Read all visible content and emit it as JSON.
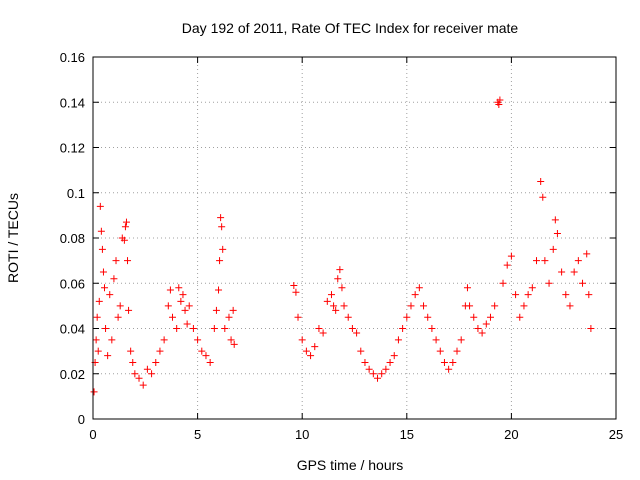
{
  "chart_data": {
    "type": "scatter",
    "title": "Day 192 of 2011, Rate Of TEC Index for receiver mate",
    "xlabel": "GPS time / hours",
    "ylabel": "ROTI / TECUs",
    "xlim": [
      0,
      25
    ],
    "ylim": [
      0,
      0.16
    ],
    "xticks": [
      0,
      5,
      10,
      15,
      20,
      25
    ],
    "yticks": [
      0,
      0.02,
      0.04,
      0.06,
      0.08,
      0.1,
      0.12,
      0.14,
      0.16
    ],
    "ytick_labels": [
      "0",
      "0.02",
      "0.04",
      "0.06",
      "0.08",
      "0.1",
      "0.12",
      "0.14",
      "0.16"
    ],
    "grid": true,
    "marker": "+",
    "marker_color": "#ff0000",
    "series": [
      {
        "points": [
          [
            0.05,
            0.012
          ],
          [
            0.1,
            0.025
          ],
          [
            0.15,
            0.035
          ],
          [
            0.2,
            0.045
          ],
          [
            0.25,
            0.03
          ],
          [
            0.3,
            0.052
          ],
          [
            0.35,
            0.094
          ],
          [
            0.4,
            0.083
          ],
          [
            0.45,
            0.075
          ],
          [
            0.5,
            0.065
          ],
          [
            0.55,
            0.058
          ],
          [
            0.6,
            0.04
          ],
          [
            0.7,
            0.028
          ],
          [
            0.8,
            0.055
          ],
          [
            0.9,
            0.035
          ],
          [
            1.0,
            0.062
          ],
          [
            1.1,
            0.07
          ],
          [
            1.2,
            0.045
          ],
          [
            1.3,
            0.05
          ],
          [
            1.4,
            0.08
          ],
          [
            1.5,
            0.079
          ],
          [
            1.55,
            0.085
          ],
          [
            1.6,
            0.087
          ],
          [
            1.65,
            0.07
          ],
          [
            1.7,
            0.048
          ],
          [
            1.8,
            0.03
          ],
          [
            1.9,
            0.025
          ],
          [
            2.0,
            0.02
          ],
          [
            2.2,
            0.018
          ],
          [
            2.4,
            0.015
          ],
          [
            2.6,
            0.022
          ],
          [
            2.8,
            0.02
          ],
          [
            3.0,
            0.025
          ],
          [
            3.2,
            0.03
          ],
          [
            3.4,
            0.035
          ],
          [
            3.6,
            0.05
          ],
          [
            3.7,
            0.057
          ],
          [
            3.8,
            0.045
          ],
          [
            4.0,
            0.04
          ],
          [
            4.1,
            0.058
          ],
          [
            4.2,
            0.052
          ],
          [
            4.3,
            0.055
          ],
          [
            4.4,
            0.048
          ],
          [
            4.5,
            0.042
          ],
          [
            4.6,
            0.05
          ],
          [
            4.8,
            0.04
          ],
          [
            5.0,
            0.035
          ],
          [
            5.2,
            0.03
          ],
          [
            5.4,
            0.028
          ],
          [
            5.6,
            0.025
          ],
          [
            5.8,
            0.04
          ],
          [
            5.9,
            0.048
          ],
          [
            6.0,
            0.057
          ],
          [
            6.05,
            0.07
          ],
          [
            6.1,
            0.089
          ],
          [
            6.15,
            0.085
          ],
          [
            6.2,
            0.075
          ],
          [
            6.3,
            0.04
          ],
          [
            6.5,
            0.045
          ],
          [
            6.6,
            0.035
          ],
          [
            6.7,
            0.048
          ],
          [
            6.75,
            0.033
          ],
          [
            9.6,
            0.059
          ],
          [
            9.7,
            0.056
          ],
          [
            9.8,
            0.045
          ],
          [
            10.0,
            0.035
          ],
          [
            10.2,
            0.03
          ],
          [
            10.4,
            0.028
          ],
          [
            10.6,
            0.032
          ],
          [
            10.8,
            0.04
          ],
          [
            11.0,
            0.038
          ],
          [
            11.2,
            0.052
          ],
          [
            11.4,
            0.055
          ],
          [
            11.5,
            0.05
          ],
          [
            11.6,
            0.048
          ],
          [
            11.7,
            0.062
          ],
          [
            11.8,
            0.066
          ],
          [
            11.9,
            0.058
          ],
          [
            12.0,
            0.05
          ],
          [
            12.2,
            0.045
          ],
          [
            12.4,
            0.04
          ],
          [
            12.6,
            0.038
          ],
          [
            12.8,
            0.03
          ],
          [
            13.0,
            0.025
          ],
          [
            13.2,
            0.022
          ],
          [
            13.4,
            0.02
          ],
          [
            13.6,
            0.018
          ],
          [
            13.8,
            0.02
          ],
          [
            14.0,
            0.022
          ],
          [
            14.2,
            0.025
          ],
          [
            14.4,
            0.028
          ],
          [
            14.6,
            0.035
          ],
          [
            14.8,
            0.04
          ],
          [
            15.0,
            0.045
          ],
          [
            15.2,
            0.05
          ],
          [
            15.4,
            0.055
          ],
          [
            15.6,
            0.058
          ],
          [
            15.8,
            0.05
          ],
          [
            16.0,
            0.045
          ],
          [
            16.2,
            0.04
          ],
          [
            16.4,
            0.035
          ],
          [
            16.6,
            0.03
          ],
          [
            16.8,
            0.025
          ],
          [
            17.0,
            0.022
          ],
          [
            17.2,
            0.025
          ],
          [
            17.4,
            0.03
          ],
          [
            17.6,
            0.035
          ],
          [
            17.8,
            0.05
          ],
          [
            17.9,
            0.058
          ],
          [
            18.0,
            0.05
          ],
          [
            18.2,
            0.045
          ],
          [
            18.4,
            0.04
          ],
          [
            18.6,
            0.038
          ],
          [
            18.8,
            0.042
          ],
          [
            19.0,
            0.045
          ],
          [
            19.2,
            0.05
          ],
          [
            19.35,
            0.14
          ],
          [
            19.4,
            0.139
          ],
          [
            19.45,
            0.141
          ],
          [
            19.6,
            0.06
          ],
          [
            19.8,
            0.068
          ],
          [
            20.0,
            0.072
          ],
          [
            20.2,
            0.055
          ],
          [
            20.4,
            0.045
          ],
          [
            20.6,
            0.05
          ],
          [
            20.8,
            0.055
          ],
          [
            21.0,
            0.058
          ],
          [
            21.2,
            0.07
          ],
          [
            21.4,
            0.105
          ],
          [
            21.5,
            0.098
          ],
          [
            21.6,
            0.07
          ],
          [
            21.8,
            0.06
          ],
          [
            22.0,
            0.075
          ],
          [
            22.1,
            0.088
          ],
          [
            22.2,
            0.082
          ],
          [
            22.4,
            0.065
          ],
          [
            22.6,
            0.055
          ],
          [
            22.8,
            0.05
          ],
          [
            23.0,
            0.065
          ],
          [
            23.2,
            0.07
          ],
          [
            23.4,
            0.06
          ],
          [
            23.6,
            0.073
          ],
          [
            23.7,
            0.055
          ],
          [
            23.8,
            0.04
          ]
        ]
      }
    ]
  }
}
